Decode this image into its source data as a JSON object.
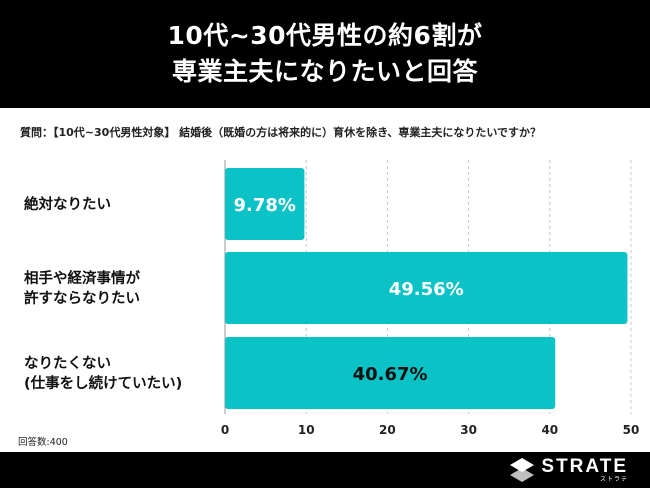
{
  "header": {
    "line1": "10代~30代男性の約6割が",
    "line2": "専業主夫になりたいと回答"
  },
  "question": "質問：【10代~30代男性対象】 結婚後（既婚の方は将来的に）育休を除き、専業主夫になりたいですか？",
  "note": "回答数:400",
  "logo": {
    "name": "STRATE",
    "sub": "ストラテ"
  },
  "colors": {
    "bar": "#0bc3c7",
    "grid": "#c8c8c8",
    "header_bg": "#000000"
  },
  "chart_data": {
    "type": "bar",
    "orientation": "horizontal",
    "categories": [
      [
        "絶対なりたい"
      ],
      [
        "相手や経済事情が",
        "許すならなりたい"
      ],
      [
        "なりたくない",
        "(仕事をし続けていたい)"
      ]
    ],
    "values": [
      9.78,
      49.56,
      40.67
    ],
    "data_labels": [
      "9.78%",
      "49.56%",
      "40.67%"
    ],
    "xlim": [
      0,
      50
    ],
    "xticks": [
      0,
      10,
      20,
      30,
      40,
      50
    ],
    "grid": true
  }
}
